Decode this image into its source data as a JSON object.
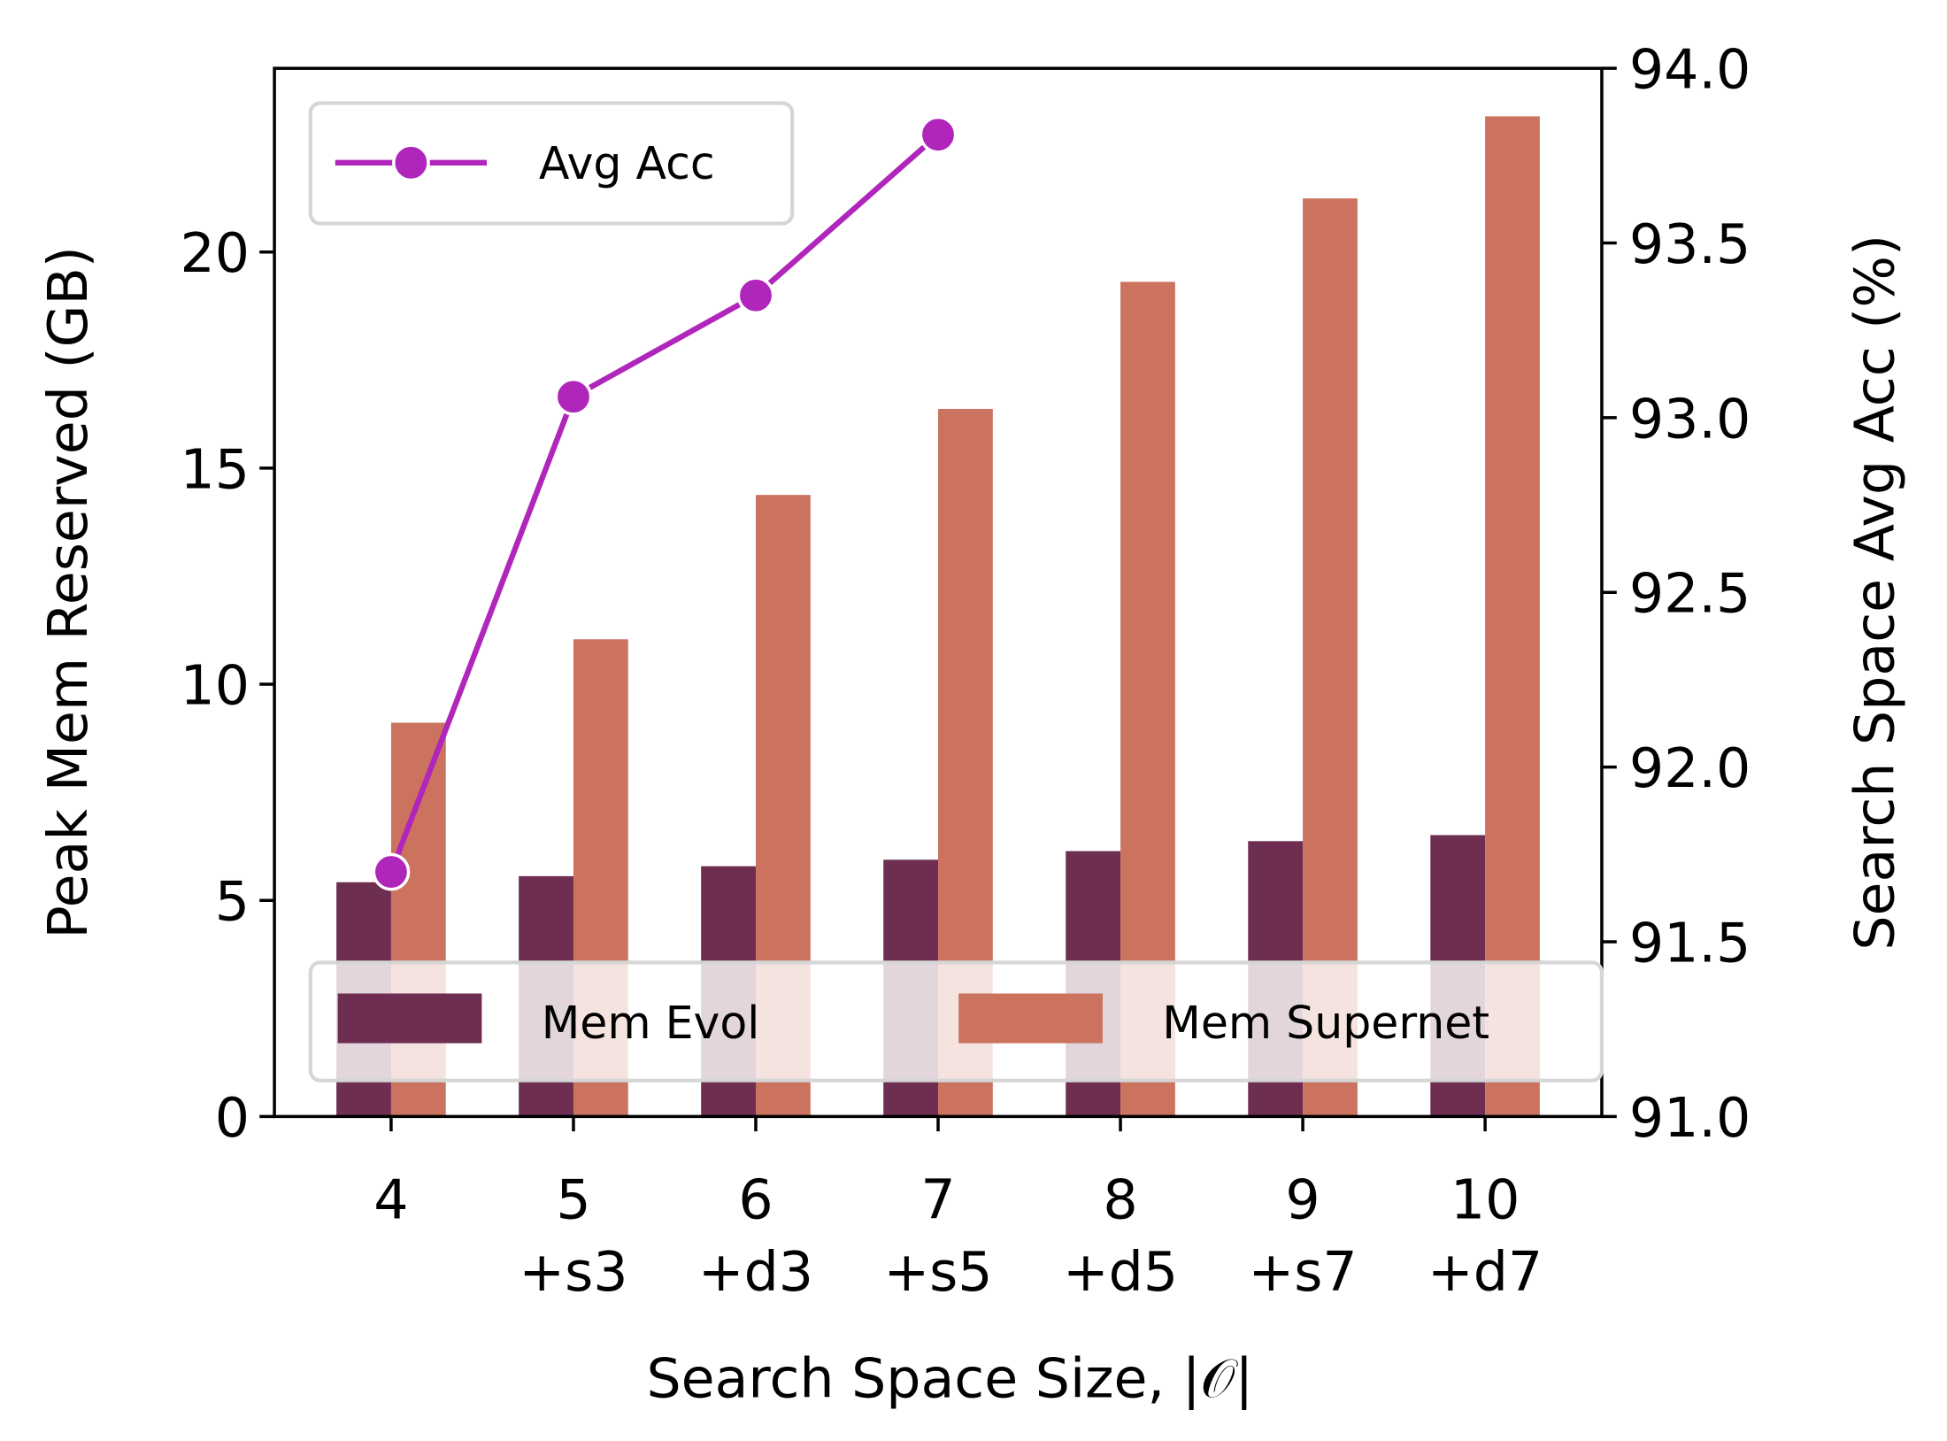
{
  "chart_data": {
    "type": "bar",
    "xlabel": "Search Space Size, |𝒪|",
    "ylabel": "Peak Mem Reserved (GB)",
    "y2label": "Search Space Avg Acc (%)",
    "categories": [
      [
        "4"
      ],
      [
        "5",
        "+s3"
      ],
      [
        "6",
        "+d3"
      ],
      [
        "7",
        "+s5"
      ],
      [
        "8",
        "+d5"
      ],
      [
        "9",
        "+s7"
      ],
      [
        "10",
        "+d7"
      ]
    ],
    "series": [
      {
        "name": "Mem Evol",
        "color": "#6d2e52",
        "values": [
          5.42,
          5.56,
          5.79,
          5.94,
          6.14,
          6.37,
          6.51
        ]
      },
      {
        "name": "Mem Supernet",
        "color": "#cb735e",
        "values": [
          9.11,
          11.04,
          14.38,
          16.37,
          19.31,
          21.24,
          23.14
        ]
      },
      {
        "name": "Avg Acc",
        "type": "line",
        "axis": "y2",
        "color": "#b026bb",
        "values": [
          91.7,
          93.06,
          93.35,
          93.81,
          null,
          null,
          null
        ]
      }
    ],
    "ylim": [
      0,
      24.25
    ],
    "yticks": [
      0,
      5,
      10,
      15,
      20
    ],
    "y2lim": [
      91,
      94
    ],
    "y2ticks": [
      {
        "value": 91,
        "label": "91.0"
      },
      91.5,
      {
        "value": 92,
        "label": "92.0"
      },
      92.5,
      {
        "value": 93,
        "label": "93.0"
      },
      93.5,
      {
        "value": 94,
        "label": "94.0"
      }
    ],
    "grid": false
  }
}
